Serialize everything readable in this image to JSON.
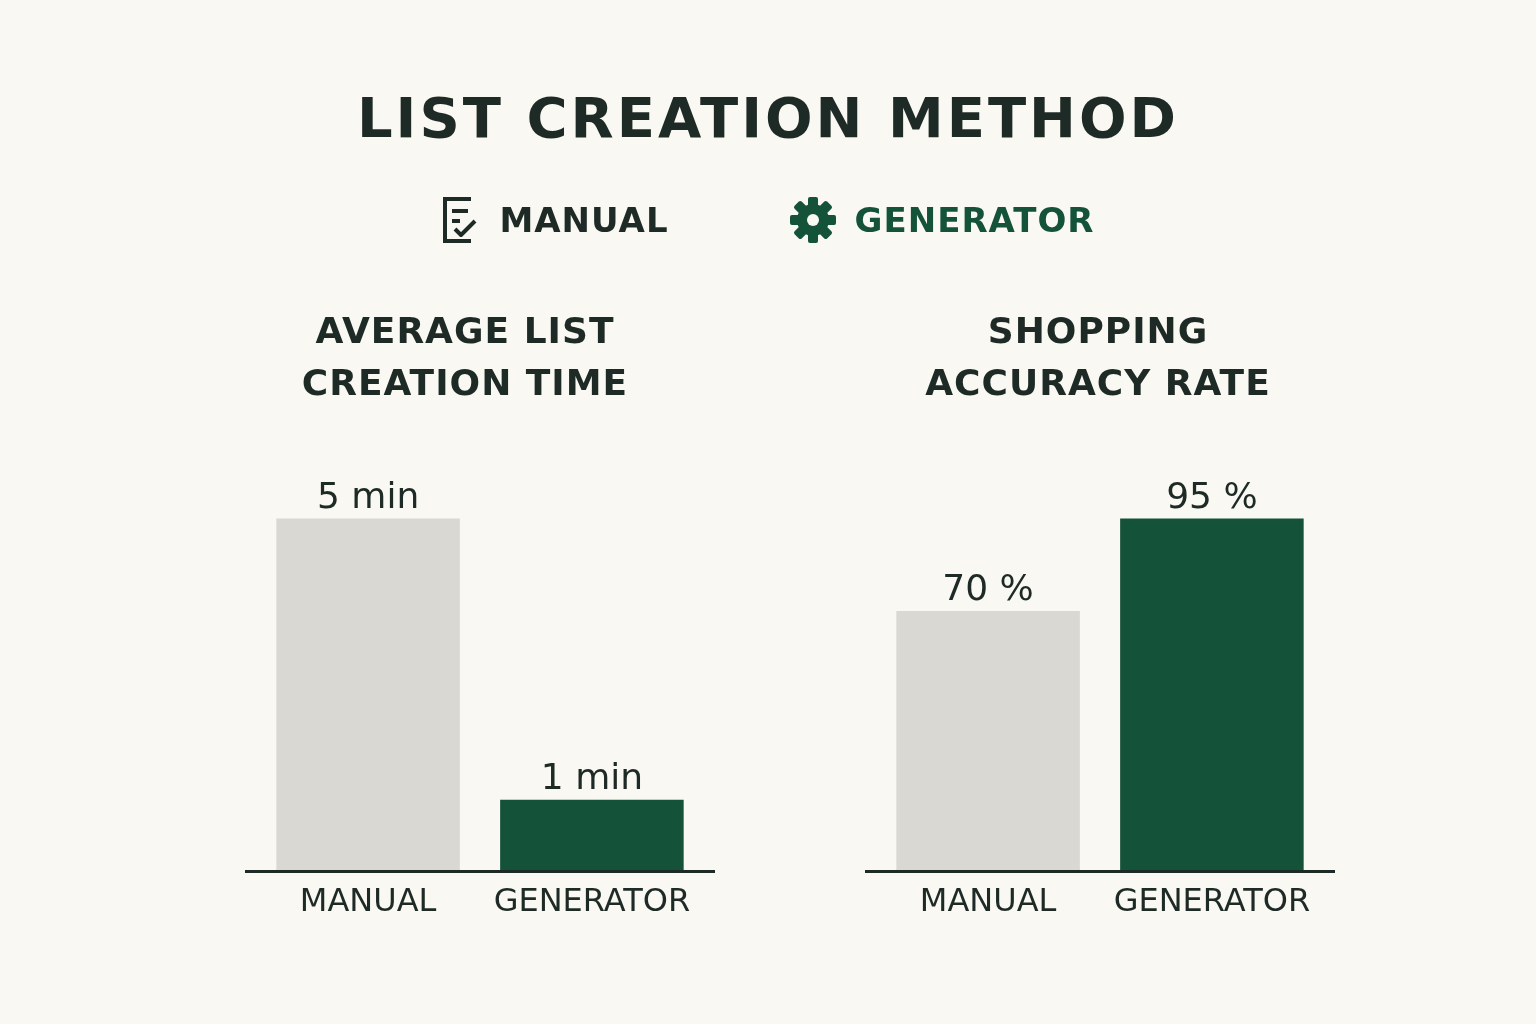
{
  "chart_data": [
    {
      "type": "other",
      "title": "LIST CREATION METHOD"
    },
    {
      "type": "bar",
      "title": "AVERAGE LIST CREATION TIME",
      "categories": [
        "MANUAL",
        "GENERATOR"
      ],
      "values": [
        5,
        1
      ],
      "value_labels": [
        "5 min",
        "1 min"
      ],
      "colors": [
        "#d9d8d3",
        "#14523a"
      ],
      "grid": false
    },
    {
      "type": "bar",
      "title": "SHOPPING ACCURACY RATE",
      "categories": [
        "MANUAL",
        "GENERATOR"
      ],
      "values": [
        70,
        95
      ],
      "value_labels": [
        "70 %",
        "95 %"
      ],
      "colors": [
        "#d9d8d3",
        "#14523a"
      ],
      "grid": false
    }
  ]
}
